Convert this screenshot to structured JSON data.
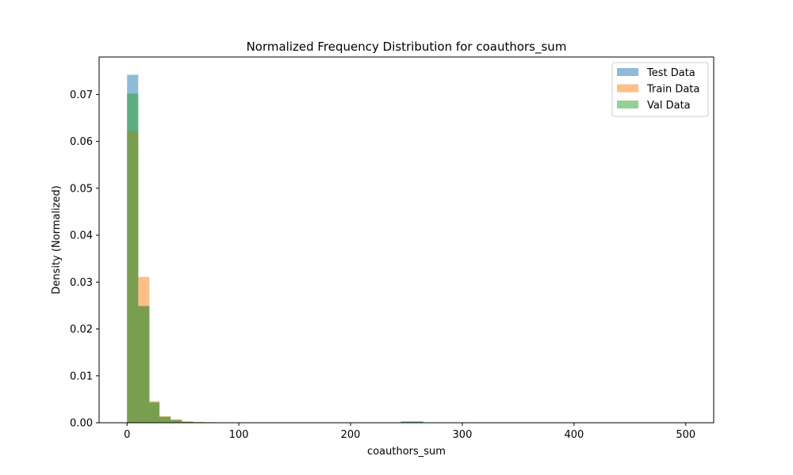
{
  "chart_data": {
    "type": "bar",
    "title": "Normalized Frequency Distribution for coauthors_sum",
    "xlabel": "coauthors_sum",
    "ylabel": "Density (Normalized)",
    "xlim": [
      -25,
      525
    ],
    "ylim": [
      0,
      0.078
    ],
    "xticks": [
      0,
      100,
      200,
      300,
      400,
      500
    ],
    "yticks": [
      0.0,
      0.01,
      0.02,
      0.03,
      0.04,
      0.05,
      0.06,
      0.07
    ],
    "ytick_labels": [
      "0.00",
      "0.01",
      "0.02",
      "0.03",
      "0.04",
      "0.05",
      "0.06",
      "0.07"
    ],
    "grid": false,
    "legend_position": "top-right",
    "bar_opacity": 0.5,
    "series": [
      {
        "name": "Test Data",
        "color": "#1f77b4",
        "bins": [
          {
            "x0": 0,
            "x1": 10,
            "y": 0.0742
          },
          {
            "x0": 10,
            "x1": 20,
            "y": 0.0249
          },
          {
            "x0": 20,
            "x1": 29,
            "y": 0.0042
          },
          {
            "x0": 29,
            "x1": 39,
            "y": 0.0012
          },
          {
            "x0": 39,
            "x1": 49,
            "y": 0.0006
          },
          {
            "x0": 49,
            "x1": 59,
            "y": 0.0002
          },
          {
            "x0": 59,
            "x1": 69,
            "y": 0.0001
          },
          {
            "x0": 69,
            "x1": 79,
            "y": 0.0001
          },
          {
            "x0": 245,
            "x1": 265,
            "y": 0.0003
          }
        ]
      },
      {
        "name": "Train Data",
        "color": "#ff7f0e",
        "bins": [
          {
            "x0": 0,
            "x1": 10,
            "y": 0.0622
          },
          {
            "x0": 10,
            "x1": 20,
            "y": 0.0311
          },
          {
            "x0": 20,
            "x1": 29,
            "y": 0.0046
          },
          {
            "x0": 29,
            "x1": 39,
            "y": 0.0014
          },
          {
            "x0": 39,
            "x1": 49,
            "y": 0.0007
          },
          {
            "x0": 49,
            "x1": 59,
            "y": 0.0003
          },
          {
            "x0": 59,
            "x1": 69,
            "y": 0.0002
          },
          {
            "x0": 69,
            "x1": 79,
            "y": 0.0001
          },
          {
            "x0": 79,
            "x1": 89,
            "y": 0.0001
          }
        ]
      },
      {
        "name": "Val Data",
        "color": "#2ca02c",
        "bins": [
          {
            "x0": 0,
            "x1": 10,
            "y": 0.0702
          },
          {
            "x0": 10,
            "x1": 20,
            "y": 0.0249
          },
          {
            "x0": 20,
            "x1": 29,
            "y": 0.0044
          },
          {
            "x0": 29,
            "x1": 39,
            "y": 0.0013
          },
          {
            "x0": 39,
            "x1": 49,
            "y": 0.0006
          },
          {
            "x0": 49,
            "x1": 59,
            "y": 0.0002
          },
          {
            "x0": 59,
            "x1": 69,
            "y": 0.0001
          },
          {
            "x0": 69,
            "x1": 79,
            "y": 0.0001
          },
          {
            "x0": 245,
            "x1": 265,
            "y": 0.0002
          }
        ]
      }
    ]
  }
}
